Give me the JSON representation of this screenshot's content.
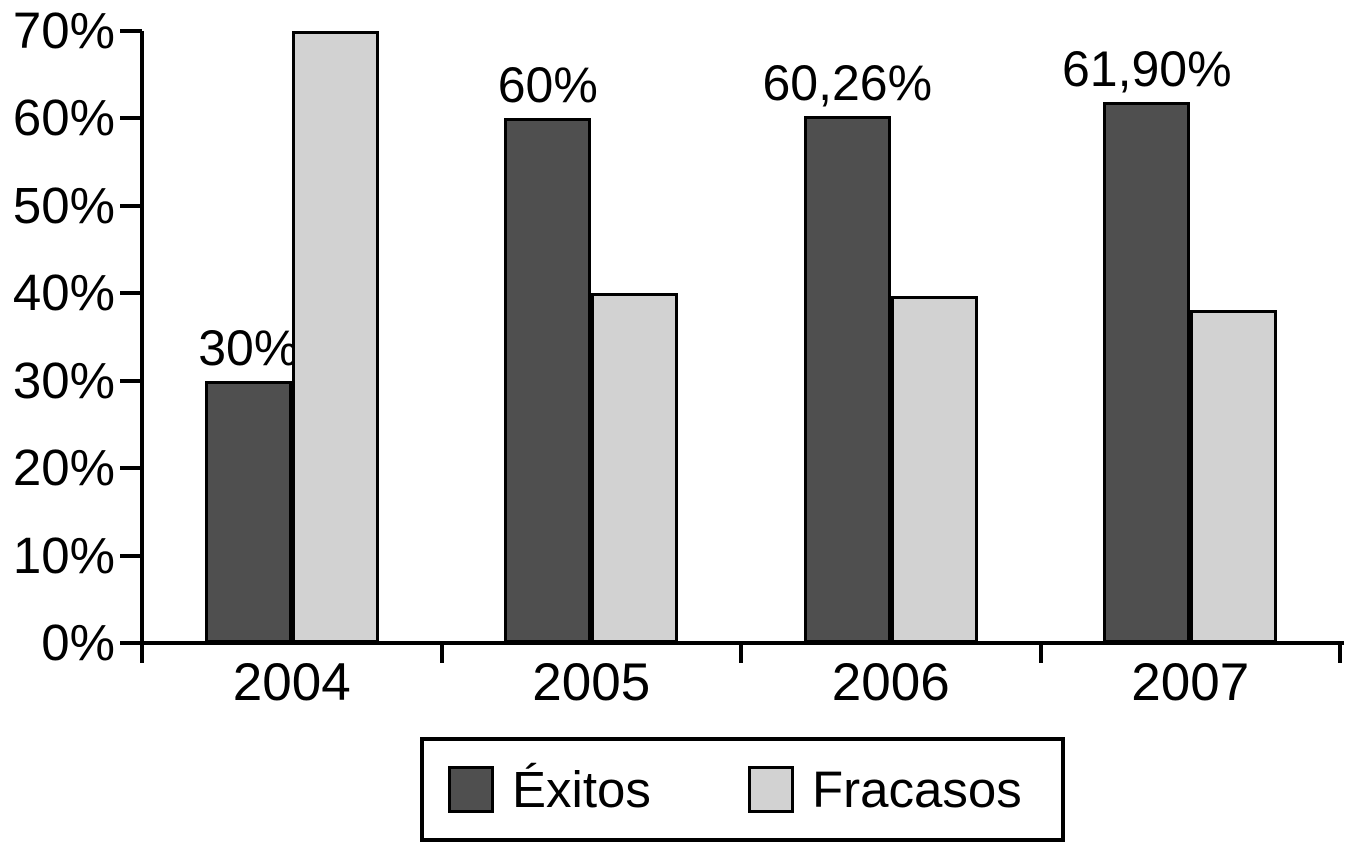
{
  "chart_data": {
    "type": "bar",
    "title": "",
    "xlabel": "",
    "ylabel": "",
    "categories": [
      "2004",
      "2005",
      "2006",
      "2007"
    ],
    "series": [
      {
        "name": "Éxitos",
        "values": [
          30,
          60,
          60.26,
          61.9
        ],
        "value_labels": [
          "30%",
          "60%",
          "60,26%",
          "61,90%"
        ],
        "color": "#4f4f4f"
      },
      {
        "name": "Fracasos",
        "values": [
          70,
          40,
          39.74,
          38.1
        ],
        "value_labels": [
          "",
          "",
          "",
          ""
        ],
        "color": "#d2d2d2"
      }
    ],
    "ylim": [
      0,
      70
    ],
    "ytick_labels": [
      "0%",
      "10%",
      "20%",
      "30%",
      "40%",
      "50%",
      "60%",
      "70%"
    ],
    "ytick_values": [
      0,
      10,
      20,
      30,
      40,
      50,
      60,
      70
    ],
    "grid": false,
    "legend_position": "bottom-center",
    "bar_border_color": "#000000",
    "axis_color": "#000000",
    "background": "#ffffff"
  },
  "legend": {
    "items": [
      {
        "label": "Éxitos",
        "color": "#4f4f4f"
      },
      {
        "label": "Fracasos",
        "color": "#d2d2d2"
      }
    ]
  }
}
